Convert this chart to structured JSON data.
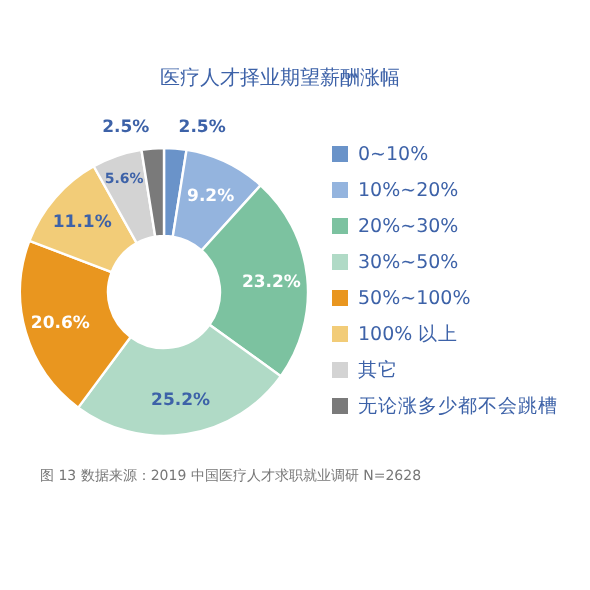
{
  "chart_data": {
    "type": "donut",
    "title": "医疗人才择业期望薪酬涨幅",
    "categories": [
      "0~10%",
      "10%~20%",
      "20%~30%",
      "30%~50%",
      "50%~100%",
      "100% 以上",
      "其它",
      "无论涨多少都不会跳槽"
    ],
    "values": [
      2.5,
      9.2,
      23.2,
      25.2,
      20.6,
      11.1,
      5.6,
      2.5
    ],
    "colors": [
      "#6a93c9",
      "#94b4de",
      "#7cc2a0",
      "#b0dac6",
      "#e9961f",
      "#f2cc78",
      "#d3d3d3",
      "#7a7a7a"
    ],
    "value_labels": [
      "2.5%",
      "9.2%",
      "23.2%",
      "25.2%",
      "20.6%",
      "11.1%",
      "5.6%",
      "2.5%"
    ],
    "legend": "right",
    "annotations": [
      "图 13    数据来源：2019 中国医疗人才求职就业调研 N=2628"
    ]
  }
}
